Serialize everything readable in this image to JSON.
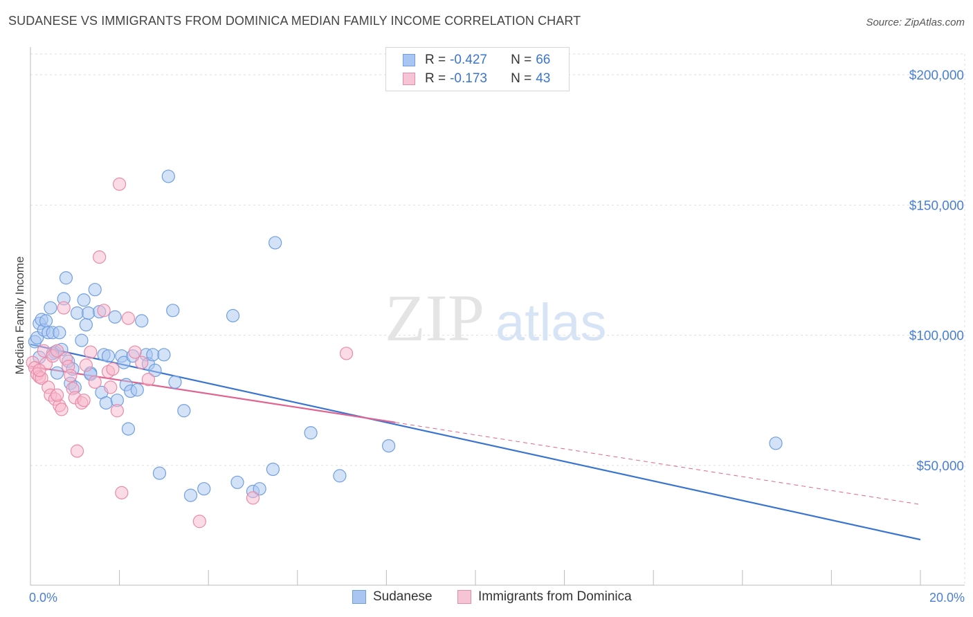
{
  "header": {
    "title": "SUDANESE VS IMMIGRANTS FROM DOMINICA MEDIAN FAMILY INCOME CORRELATION CHART",
    "source": "Source: ZipAtlas.com"
  },
  "legend": {
    "rows": [
      {
        "r_label": "R =",
        "r_value": "-0.427",
        "n_label": "N =",
        "n_value": "66"
      },
      {
        "r_label": "R =",
        "r_value": "-0.173",
        "n_label": "N =",
        "n_value": "43"
      }
    ]
  },
  "bottom_legend": {
    "series1": "Sudanese",
    "series2": "Immigrants from Dominica"
  },
  "watermark": {
    "zip": "ZIP",
    "atlas": "atlas"
  },
  "colors": {
    "blue_fill": "#a9c6f2",
    "blue_stroke": "#6f9fe0",
    "blue_line": "#3a74d1",
    "pink_fill": "#f7b8cc",
    "pink_stroke": "#ea8aa8",
    "pink_line": "#e0648f",
    "tick_text": "#4a7fd4",
    "grid": "#dddddd"
  },
  "chart_data": {
    "type": "scatter",
    "title": "SUDANESE VS IMMIGRANTS FROM DOMINICA MEDIAN FAMILY INCOME CORRELATION CHART",
    "xlabel": "",
    "ylabel": "Median Family Income",
    "xlim": [
      0,
      20
    ],
    "ylim": [
      4000,
      208000
    ],
    "x_tick_labels": [
      "0.0%",
      "20.0%"
    ],
    "y_ticks": [
      50000,
      100000,
      150000,
      200000
    ],
    "y_tick_labels": [
      "$50,000",
      "$100,000",
      "$150,000",
      "$200,000"
    ],
    "grid": true,
    "series": [
      {
        "name": "Sudanese",
        "points": [
          [
            0.1,
            97500
          ],
          [
            0.15,
            99000
          ],
          [
            0.2,
            104500
          ],
          [
            0.25,
            106000
          ],
          [
            0.3,
            102000
          ],
          [
            0.35,
            105500
          ],
          [
            0.4,
            101000
          ],
          [
            0.45,
            110500
          ],
          [
            0.5,
            101000
          ],
          [
            0.55,
            93500
          ],
          [
            0.6,
            85500
          ],
          [
            0.65,
            101000
          ],
          [
            0.7,
            94500
          ],
          [
            0.75,
            114000
          ],
          [
            0.8,
            122000
          ],
          [
            0.85,
            90000
          ],
          [
            0.9,
            81500
          ],
          [
            0.95,
            87000
          ],
          [
            1.0,
            80000
          ],
          [
            1.05,
            108500
          ],
          [
            1.15,
            98000
          ],
          [
            1.2,
            113500
          ],
          [
            1.25,
            104000
          ],
          [
            1.3,
            108500
          ],
          [
            1.35,
            85500
          ],
          [
            1.45,
            117500
          ],
          [
            1.55,
            109000
          ],
          [
            1.6,
            78000
          ],
          [
            1.65,
            92500
          ],
          [
            1.7,
            74000
          ],
          [
            1.75,
            92000
          ],
          [
            1.9,
            107000
          ],
          [
            1.95,
            75000
          ],
          [
            2.05,
            92000
          ],
          [
            2.1,
            89500
          ],
          [
            2.15,
            81000
          ],
          [
            2.2,
            64000
          ],
          [
            2.25,
            78500
          ],
          [
            2.3,
            92000
          ],
          [
            2.4,
            79000
          ],
          [
            2.5,
            105500
          ],
          [
            2.6,
            92500
          ],
          [
            2.65,
            89000
          ],
          [
            2.75,
            92500
          ],
          [
            2.8,
            86500
          ],
          [
            2.9,
            47000
          ],
          [
            3.0,
            92500
          ],
          [
            3.1,
            161000
          ],
          [
            3.2,
            109500
          ],
          [
            3.25,
            82000
          ],
          [
            3.45,
            71000
          ],
          [
            3.6,
            38500
          ],
          [
            3.9,
            41000
          ],
          [
            4.55,
            107500
          ],
          [
            4.65,
            43500
          ],
          [
            5.0,
            40000
          ],
          [
            5.15,
            41000
          ],
          [
            5.5,
            135500
          ],
          [
            5.45,
            48500
          ],
          [
            6.3,
            62500
          ],
          [
            6.95,
            46000
          ],
          [
            8.05,
            57500
          ],
          [
            16.75,
            58500
          ],
          [
            0.2,
            91500
          ],
          [
            0.5,
            93000
          ],
          [
            1.35,
            85000
          ]
        ]
      },
      {
        "name": "Immigrants from Dominica",
        "points": [
          [
            0.05,
            89500
          ],
          [
            0.1,
            87500
          ],
          [
            0.15,
            85000
          ],
          [
            0.2,
            84000
          ],
          [
            0.25,
            83500
          ],
          [
            0.3,
            94000
          ],
          [
            0.35,
            89000
          ],
          [
            0.4,
            80000
          ],
          [
            0.45,
            77000
          ],
          [
            0.5,
            92000
          ],
          [
            0.55,
            75500
          ],
          [
            0.6,
            94000
          ],
          [
            0.65,
            73000
          ],
          [
            0.7,
            71500
          ],
          [
            0.75,
            110500
          ],
          [
            0.8,
            91000
          ],
          [
            0.85,
            88000
          ],
          [
            0.9,
            84500
          ],
          [
            0.95,
            79500
          ],
          [
            1.0,
            76000
          ],
          [
            1.05,
            55500
          ],
          [
            1.15,
            74000
          ],
          [
            1.25,
            88500
          ],
          [
            1.35,
            93500
          ],
          [
            1.45,
            82000
          ],
          [
            1.55,
            130000
          ],
          [
            1.65,
            109500
          ],
          [
            1.75,
            86000
          ],
          [
            1.8,
            80000
          ],
          [
            1.85,
            87000
          ],
          [
            1.95,
            71000
          ],
          [
            2.0,
            158000
          ],
          [
            2.05,
            39500
          ],
          [
            2.2,
            106500
          ],
          [
            2.35,
            93500
          ],
          [
            2.5,
            89500
          ],
          [
            2.65,
            83000
          ],
          [
            3.8,
            28500
          ],
          [
            5.0,
            37500
          ],
          [
            7.1,
            93000
          ],
          [
            0.2,
            86500
          ],
          [
            0.6,
            77000
          ],
          [
            1.2,
            75000
          ]
        ]
      }
    ],
    "trend_lines": [
      {
        "name": "Sudanese",
        "x0": 0,
        "y0": 96500,
        "x1": 20,
        "y1": 21500,
        "style": "solid"
      },
      {
        "name": "Immigrants from Dominica",
        "x0": 0,
        "y0": 88000,
        "x1": 8.2,
        "y1": 66500,
        "style": "solid"
      },
      {
        "name": "Immigrants from Dominica (extrapolated)",
        "x0": 8.2,
        "y0": 66500,
        "x1": 20,
        "y1": 35000,
        "style": "dashed"
      }
    ]
  }
}
